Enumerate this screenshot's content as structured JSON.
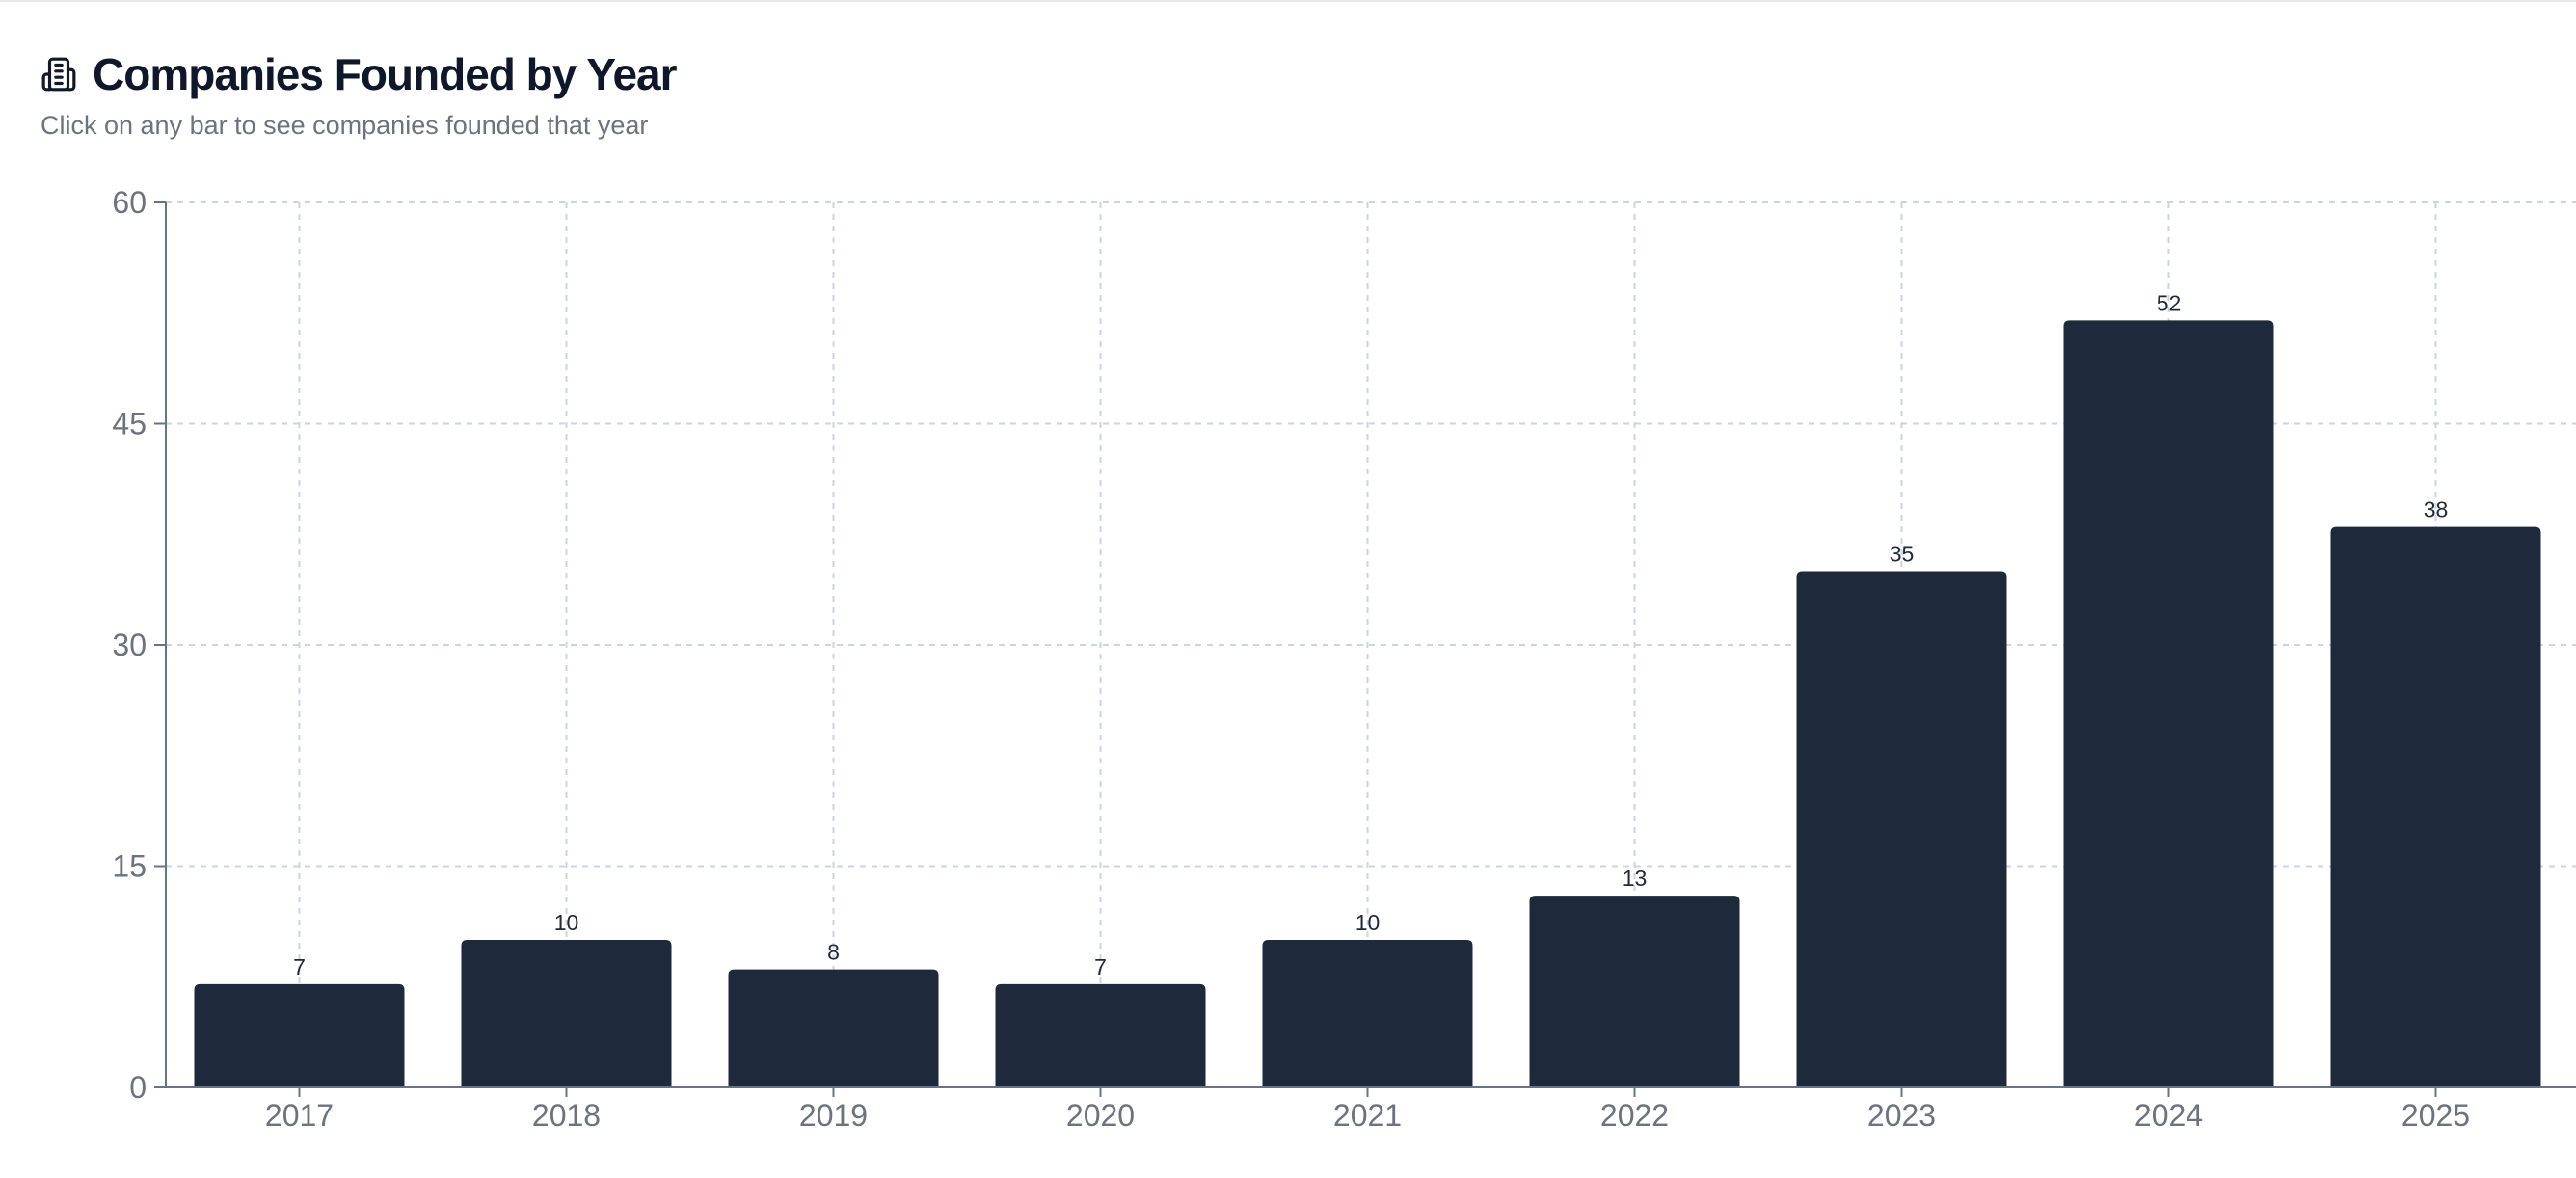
{
  "header": {
    "icon": "building-icon",
    "title": "Companies Founded by Year",
    "subtitle": "Click on any bar to see companies founded that year"
  },
  "colors": {
    "bar": "#1e293b",
    "grid": "#cbd5e1",
    "axis": "#64748b",
    "tick_label": "#6b7280",
    "data_label": "#1e293b"
  },
  "chart_data": {
    "type": "bar",
    "categories": [
      "2017",
      "2018",
      "2019",
      "2020",
      "2021",
      "2022",
      "2023",
      "2024",
      "2025"
    ],
    "values": [
      7,
      10,
      8,
      7,
      10,
      13,
      35,
      52,
      38
    ],
    "ylim": [
      0,
      60
    ],
    "yticks": [
      0,
      15,
      30,
      45,
      60
    ],
    "grid": true,
    "data_labels": true,
    "title": "",
    "xlabel": "",
    "ylabel": ""
  }
}
